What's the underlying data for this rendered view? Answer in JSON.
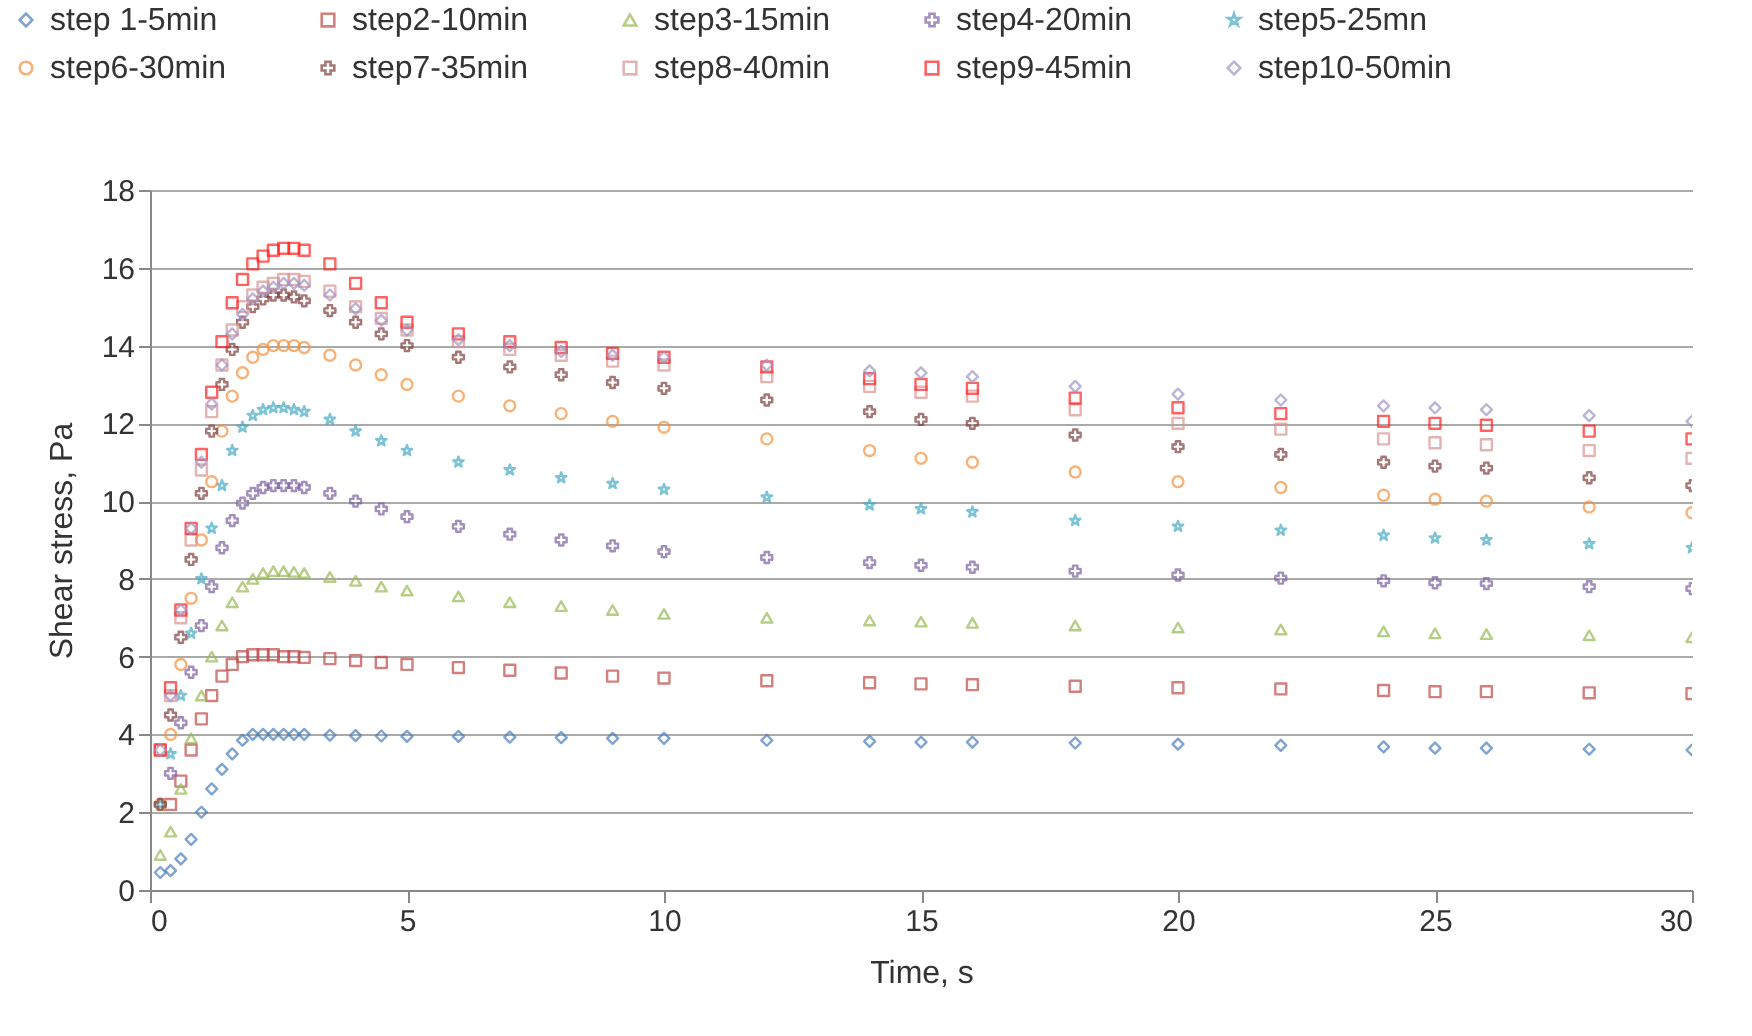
{
  "chart_data": {
    "type": "scatter",
    "xlabel": "Time, s",
    "ylabel": "Shear stress, Pa",
    "xlim": [
      0,
      30
    ],
    "xticks": [
      0,
      5,
      10,
      15,
      20,
      25,
      30
    ],
    "ylim": [
      0,
      18
    ],
    "yticks": [
      0,
      2,
      4,
      6,
      8,
      10,
      12,
      14,
      16,
      18
    ],
    "grid": "y",
    "legend": "top",
    "x": [
      0.2,
      0.4,
      0.6,
      0.8,
      1,
      1.2,
      1.4,
      1.6,
      1.8,
      2,
      2.2,
      2.4,
      2.6,
      2.8,
      3,
      3.5,
      4,
      4.5,
      5,
      6,
      7,
      8,
      9,
      10,
      12,
      14,
      15,
      16,
      18,
      20,
      22,
      24,
      25,
      26,
      28,
      30
    ],
    "series": [
      {
        "name": "step 1-5min",
        "color": "#4a7ebb",
        "marker": "diamond",
        "values": [
          0.45,
          0.5,
          0.8,
          1.3,
          2.0,
          2.6,
          3.1,
          3.5,
          3.85,
          4.0,
          4.0,
          4.0,
          4.0,
          4.0,
          4.0,
          3.98,
          3.97,
          3.96,
          3.95,
          3.95,
          3.93,
          3.92,
          3.9,
          3.9,
          3.85,
          3.82,
          3.8,
          3.8,
          3.78,
          3.75,
          3.72,
          3.68,
          3.65,
          3.65,
          3.62,
          3.6
        ]
      },
      {
        "name": "step2-10min",
        "color": "#be4b48",
        "marker": "square",
        "values": [
          null,
          2.2,
          2.8,
          3.6,
          4.4,
          5.0,
          5.5,
          5.8,
          6.0,
          6.05,
          6.05,
          6.05,
          6.0,
          6.0,
          5.98,
          5.95,
          5.9,
          5.85,
          5.8,
          5.72,
          5.65,
          5.58,
          5.5,
          5.45,
          5.38,
          5.33,
          5.3,
          5.28,
          5.24,
          5.2,
          5.17,
          5.13,
          5.1,
          5.1,
          5.07,
          5.05
        ]
      },
      {
        "name": "step3-15min",
        "color": "#98b954",
        "marker": "triangle",
        "values": [
          0.9,
          1.5,
          2.6,
          3.9,
          5.0,
          6.0,
          6.8,
          7.4,
          7.8,
          8.0,
          8.15,
          8.2,
          8.2,
          8.18,
          8.15,
          8.05,
          7.95,
          7.8,
          7.7,
          7.55,
          7.4,
          7.3,
          7.2,
          7.1,
          7.0,
          6.93,
          6.9,
          6.87,
          6.8,
          6.75,
          6.7,
          6.65,
          6.6,
          6.58,
          6.55,
          6.5
        ]
      },
      {
        "name": "step4-20min",
        "color": "#7d60a0",
        "marker": "cross",
        "values": [
          null,
          3.0,
          4.3,
          5.6,
          6.8,
          7.8,
          8.8,
          9.5,
          9.95,
          10.2,
          10.35,
          10.4,
          10.4,
          10.4,
          10.35,
          10.2,
          10.0,
          9.8,
          9.6,
          9.35,
          9.15,
          9.0,
          8.85,
          8.7,
          8.55,
          8.42,
          8.35,
          8.3,
          8.2,
          8.1,
          8.02,
          7.95,
          7.9,
          7.88,
          7.8,
          7.75
        ]
      },
      {
        "name": "step5-25mn",
        "color": "#46aac5",
        "marker": "star",
        "values": [
          2.2,
          3.5,
          5.0,
          6.6,
          8.0,
          9.3,
          10.4,
          11.3,
          11.9,
          12.2,
          12.35,
          12.4,
          12.4,
          12.35,
          12.3,
          12.1,
          11.8,
          11.55,
          11.3,
          11.0,
          10.8,
          10.6,
          10.45,
          10.3,
          10.1,
          9.9,
          9.8,
          9.72,
          9.5,
          9.35,
          9.25,
          9.12,
          9.05,
          9.0,
          8.9,
          8.8
        ]
      },
      {
        "name": "step6-30min",
        "color": "#f69240",
        "marker": "circle",
        "values": [
          2.2,
          4.0,
          5.8,
          7.5,
          9.0,
          10.5,
          11.8,
          12.7,
          13.3,
          13.7,
          13.9,
          14.0,
          14.0,
          14.0,
          13.95,
          13.75,
          13.5,
          13.25,
          13.0,
          12.7,
          12.45,
          12.25,
          12.05,
          11.9,
          11.6,
          11.3,
          11.1,
          11.0,
          10.75,
          10.5,
          10.35,
          10.15,
          10.05,
          10.0,
          9.85,
          9.7
        ]
      },
      {
        "name": "step7-35min",
        "color": "#7f3f3e",
        "marker": "cross",
        "values": [
          2.2,
          4.5,
          6.5,
          8.5,
          10.2,
          11.8,
          13.0,
          13.9,
          14.6,
          15.0,
          15.2,
          15.3,
          15.3,
          15.25,
          15.15,
          14.9,
          14.6,
          14.3,
          14.0,
          13.7,
          13.45,
          13.25,
          13.05,
          12.9,
          12.6,
          12.3,
          12.1,
          12.0,
          11.7,
          11.4,
          11.2,
          11.0,
          10.9,
          10.85,
          10.6,
          10.4
        ]
      },
      {
        "name": "step8-40min",
        "color": "#d99594",
        "marker": "square",
        "values": [
          3.6,
          5.0,
          7.0,
          9.0,
          10.8,
          12.3,
          13.5,
          14.4,
          15.0,
          15.3,
          15.5,
          15.6,
          15.7,
          15.7,
          15.65,
          15.4,
          15.0,
          14.7,
          14.4,
          14.1,
          13.9,
          13.75,
          13.6,
          13.5,
          13.2,
          12.95,
          12.8,
          12.7,
          12.35,
          12.0,
          11.85,
          11.6,
          11.5,
          11.45,
          11.3,
          11.1
        ]
      },
      {
        "name": "step9-45min",
        "color": "#ff2020",
        "marker": "square",
        "values": [
          3.6,
          5.2,
          7.2,
          9.3,
          11.2,
          12.8,
          14.1,
          15.1,
          15.7,
          16.1,
          16.3,
          16.45,
          16.5,
          16.5,
          16.45,
          16.1,
          15.6,
          15.1,
          14.6,
          14.3,
          14.1,
          13.95,
          13.8,
          13.7,
          13.45,
          13.15,
          13.0,
          12.9,
          12.65,
          12.4,
          12.25,
          12.05,
          12.0,
          11.95,
          11.8,
          11.6
        ]
      },
      {
        "name": "step10-50min",
        "color": "#a094c4",
        "marker": "diamond",
        "values": [
          3.6,
          5.0,
          7.2,
          9.3,
          11.0,
          12.5,
          13.5,
          14.3,
          14.8,
          15.2,
          15.4,
          15.5,
          15.6,
          15.6,
          15.55,
          15.3,
          14.95,
          14.65,
          14.4,
          14.15,
          14.0,
          13.85,
          13.75,
          13.7,
          13.5,
          13.35,
          13.3,
          13.2,
          12.95,
          12.75,
          12.6,
          12.45,
          12.4,
          12.35,
          12.2,
          12.05
        ]
      }
    ]
  }
}
